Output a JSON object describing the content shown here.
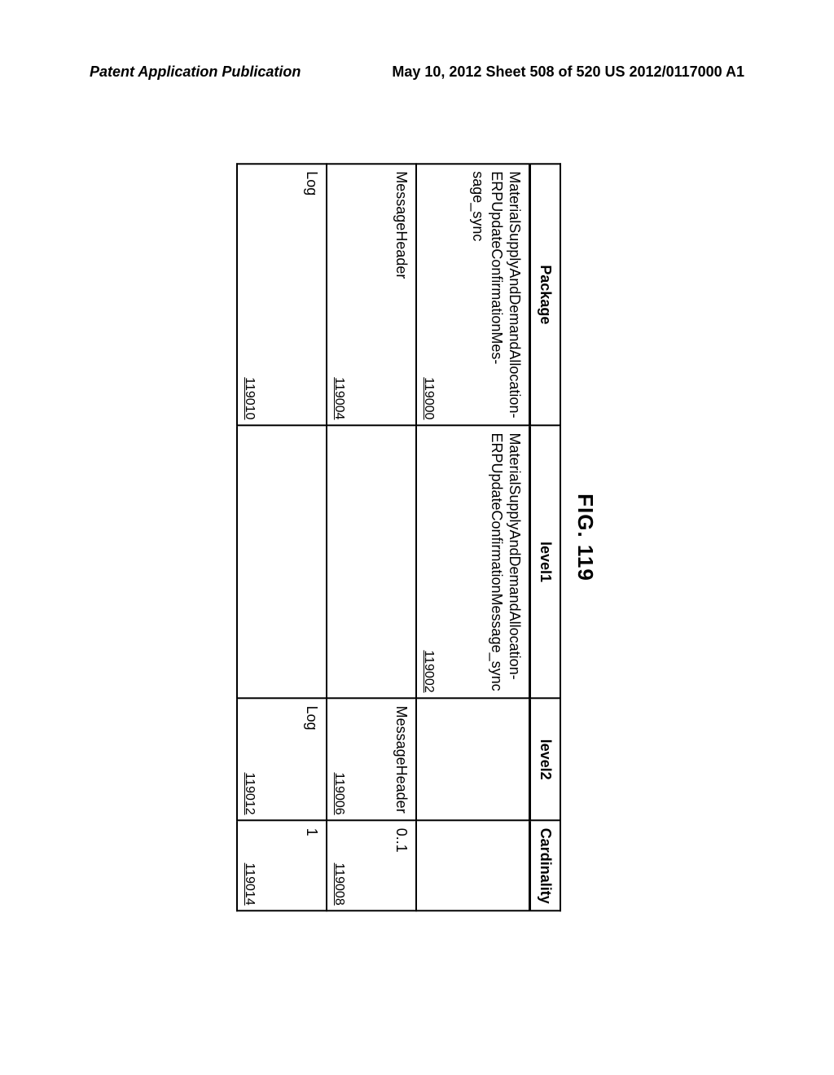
{
  "header": {
    "left": "Patent Application Publication",
    "right": "May 10, 2012  Sheet 508 of 520    US 2012/0117000 A1"
  },
  "figure": {
    "title": "FIG. 119",
    "columns": [
      "Package",
      "level1",
      "level2",
      "Cardinality"
    ],
    "rows": [
      {
        "package": "MaterialSupplyAndDemandAllocation-ERPUpdateConfirmationMes-sage_sync",
        "package_ref": "119000",
        "level1": "MaterialSupplyAndDemandAllocation-ERPUpdateConfirmationMessage_sync",
        "level1_ref": "119002",
        "level2": "",
        "level2_ref": "",
        "cardinality": "",
        "cardinality_ref": ""
      },
      {
        "package": "MessageHeader",
        "package_ref": "119004",
        "level1": "",
        "level1_ref": "",
        "level2": "MessageHeader",
        "level2_ref": "119006",
        "cardinality": "0..1",
        "cardinality_ref": "119008"
      },
      {
        "package": "Log",
        "package_ref": "119010",
        "level1": "",
        "level1_ref": "",
        "level2": "Log",
        "level2_ref": "119012",
        "cardinality": "1",
        "cardinality_ref": "119014"
      }
    ]
  }
}
